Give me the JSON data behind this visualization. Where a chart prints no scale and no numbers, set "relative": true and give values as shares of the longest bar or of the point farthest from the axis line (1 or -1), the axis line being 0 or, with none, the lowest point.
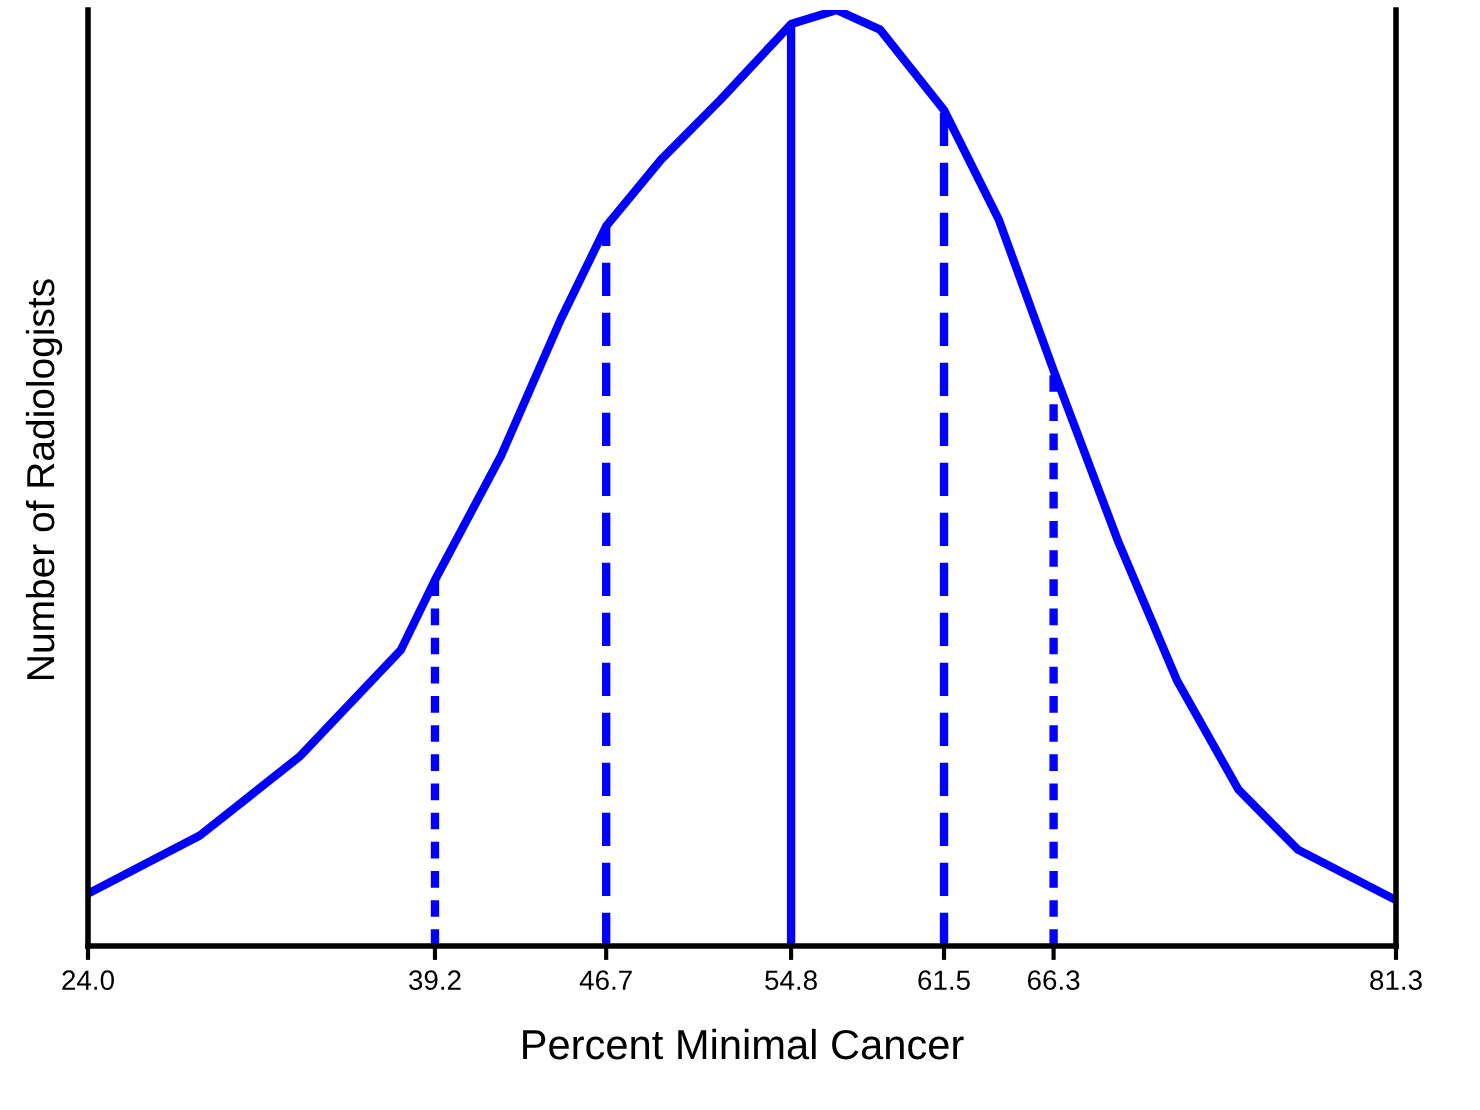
{
  "chart_data": {
    "type": "line",
    "relative": true,
    "xlabel": "Percent Minimal Cancer",
    "ylabel": "Number of Radiologists",
    "xlim": [
      24.0,
      81.3
    ],
    "xticks": [
      {
        "value": 24.0,
        "label": "24.0"
      },
      {
        "value": 39.2,
        "label": "39.2"
      },
      {
        "value": 46.7,
        "label": "46.7"
      },
      {
        "value": 54.8,
        "label": "54.8"
      },
      {
        "value": 61.5,
        "label": "61.5"
      },
      {
        "value": 66.3,
        "label": "66.3"
      },
      {
        "value": 81.3,
        "label": "81.3"
      }
    ],
    "grid": false,
    "legend": false,
    "marker": "none",
    "series": [
      {
        "color": "#0000ff",
        "line_style": "solid",
        "x": [
          24.0,
          28.9,
          33.3,
          37.7,
          39.2,
          42.1,
          44.7,
          46.7,
          49.1,
          51.7,
          54.8,
          56.8,
          58.7,
          61.5,
          63.9,
          66.3,
          69.1,
          71.7,
          74.4,
          77.0,
          81.3
        ],
        "values": [
          0.056,
          0.118,
          0.203,
          0.316,
          0.391,
          0.524,
          0.669,
          0.769,
          0.84,
          0.904,
          0.985,
          1.0,
          0.979,
          0.893,
          0.776,
          0.615,
          0.434,
          0.284,
          0.167,
          0.103,
          0.049
        ]
      }
    ],
    "ref_lines": [
      {
        "axis": "x",
        "value": 39.2,
        "color": "#0000ff",
        "line_style": "dotted"
      },
      {
        "axis": "x",
        "value": 46.7,
        "color": "#0000ff",
        "line_style": "dashed"
      },
      {
        "axis": "x",
        "value": 54.8,
        "color": "#0000ff",
        "line_style": "solid"
      },
      {
        "axis": "x",
        "value": 61.5,
        "color": "#0000ff",
        "line_style": "dashed"
      },
      {
        "axis": "x",
        "value": 66.3,
        "color": "#0000ff",
        "line_style": "dotted"
      }
    ]
  }
}
